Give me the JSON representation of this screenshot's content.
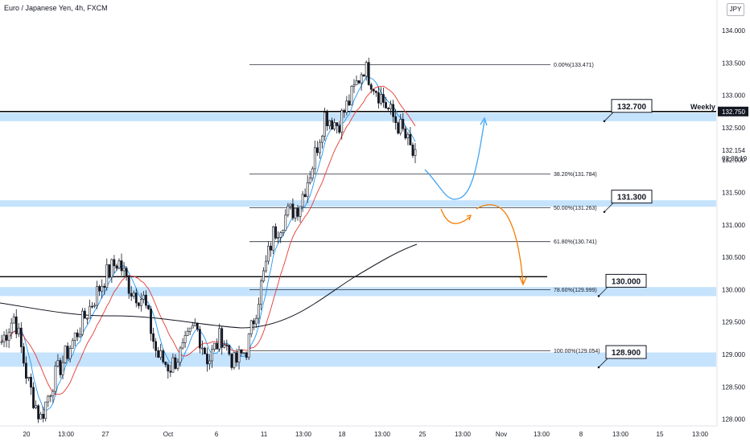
{
  "header": {
    "title": "Euro / Japanese Yen, 4h, FXCM",
    "currency": "JPY"
  },
  "chart_data": {
    "type": "candlestick",
    "ylim": [
      127.95,
      134.2
    ],
    "y_ticks": [
      "134.000",
      "133.500",
      "133.000",
      "132.500",
      "132.000",
      "131.500",
      "131.000",
      "130.500",
      "130.000",
      "129.500",
      "129.000",
      "128.500",
      "128.000"
    ],
    "x_ticks": [
      "20",
      "13:00",
      "27",
      "Oct",
      "6",
      "11",
      "13:00",
      "18",
      "13:00",
      "25",
      "13:00",
      "Nov",
      "13:00",
      "8",
      "13:00",
      "15",
      "13:00"
    ],
    "weekly_line": {
      "label": "Weekly",
      "price": 132.75,
      "price_label": "132.750"
    },
    "last_price": {
      "value": "132.154",
      "countdown": "02:38:19",
      "price": 132.154
    },
    "black_level": 130.2,
    "fib_levels": [
      {
        "label": "0.00%(133.471)",
        "price": 133.471
      },
      {
        "label": "38.20%(131.784)",
        "price": 131.784
      },
      {
        "label": "50.00%(131.263)",
        "price": 131.263
      },
      {
        "label": "61.80%(130.741)",
        "price": 130.741
      },
      {
        "label": "78.60%(129.999)",
        "price": 129.999
      },
      {
        "label": "100.00%(129.054)",
        "price": 129.054
      }
    ],
    "zones": [
      {
        "top": 132.73,
        "bottom": 132.6
      },
      {
        "top": 131.38,
        "bottom": 131.28
      },
      {
        "top": 130.04,
        "bottom": 129.9
      },
      {
        "top": 129.03,
        "bottom": 128.81
      }
    ],
    "callouts": [
      {
        "text": "132.700",
        "price": 132.7
      },
      {
        "text": "131.300",
        "price": 131.3
      },
      {
        "text": "130.000",
        "price": 130.0
      },
      {
        "text": "128.900",
        "price": 128.9
      }
    ],
    "anchors": [
      129.2,
      129.6,
      128.6,
      128.0,
      128.6,
      129.0,
      129.4,
      129.8,
      130.2,
      130.45,
      130.0,
      129.85,
      129.0,
      128.8,
      129.05,
      129.45,
      128.9,
      129.3,
      128.85,
      129.1,
      130.0,
      130.85,
      131.15,
      131.3,
      131.9,
      132.7,
      132.55,
      132.95,
      133.45,
      133.1,
      132.75,
      132.45,
      132.0
    ]
  }
}
